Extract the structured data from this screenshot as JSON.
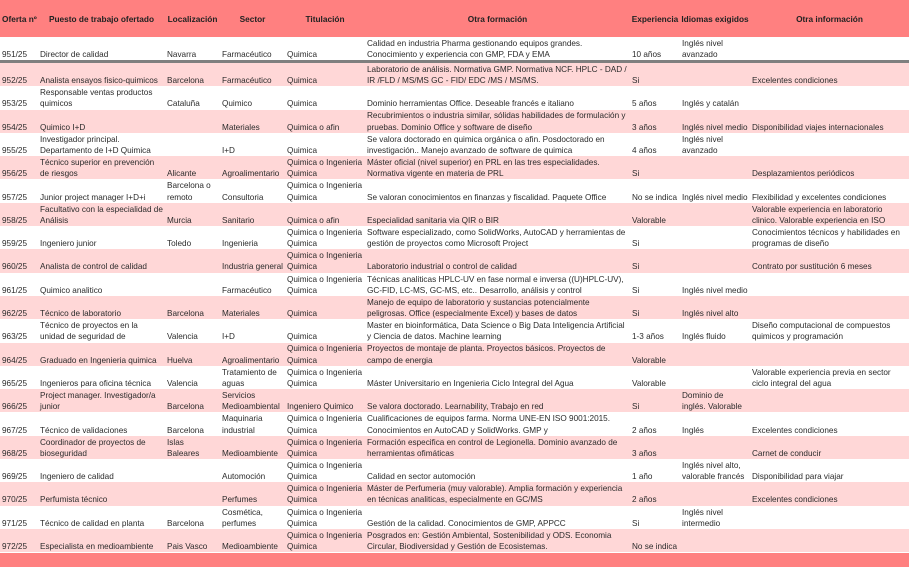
{
  "colors": {
    "header": "#ff8080",
    "stripe": "#ffd7d7",
    "separator": "#7f7f7f"
  },
  "headers": [
    "Oferta nº",
    "Puesto de trabajo ofertado",
    "Localización",
    "Sector",
    "Titulación",
    "Otra formación",
    "Experiencia",
    "Idiomas exigidos",
    "Otra información"
  ],
  "rows": [
    [
      "951/25",
      "Director de calidad",
      "Navarra",
      "Farmacéutico",
      "Quimica",
      "Calidad en industria Pharma gestionando equipos grandes. Conocimiento y experiencia con GMP, FDA y EMA",
      "10 años",
      "Inglés nivel avanzado",
      ""
    ],
    [
      "952/25",
      "Analista ensayos fisico-quimicos",
      "Barcelona",
      "Farmacéutico",
      "Quimica",
      "Laboratorio de análisis. Normativa GMP. Normativa NCF. HPLC - DAD / IR /FLD / MS/MS GC - FID/ EDC /MS / MS/MS.",
      "Si",
      "",
      "Excelentes condiciones"
    ],
    [
      "953/25",
      "Responsable ventas productos quimicos",
      "Cataluña",
      "Quimico",
      "Quimica",
      "Dominio herramientas Office. Deseable francés e italiano",
      "5 años",
      "Inglés y catalán",
      ""
    ],
    [
      "954/25",
      "Quimico I+D",
      "",
      "Materiales",
      "Quimica o afin",
      "Recubrimientos o industria similar, sólidas habilidades de formulación y pruebas. Dominio Office y software de diseño",
      "3 años",
      "Inglés nivel medio",
      "Disponibilidad viajes internacionales"
    ],
    [
      "955/25",
      "Investigador principal. Departamento de I+D Quimica",
      "",
      "I+D",
      "Quimica",
      "Se valora doctorado en quimica orgánica o afin. Posdoctorado en investigación.. Manejo avanzado de software de quimica",
      "4 años",
      "Inglés nivel avanzado",
      ""
    ],
    [
      "956/25",
      "Técnico superior en prevención de riesgos",
      "Alicante",
      "Agroalimentario",
      "Quimica o Ingenieria Quimica",
      "Máster oficial (nivel superior) en PRL en las tres especialidades. Normativa vigente en materia de PRL",
      "Si",
      "",
      "Desplazamientos periódicos"
    ],
    [
      "957/25",
      "Junior project manager I+D+i",
      "Barcelona o remoto",
      "Consultoria",
      "Quimica o Ingenieria Quimica",
      "Se valoran conocimientos en finanzas y fiscalidad. Paquete Office",
      "No se indica",
      "Inglés nivel medio",
      "Flexibilidad y excelentes condiciones"
    ],
    [
      "958/25",
      "Facultativo con la especialidad de Análisis",
      "Murcia",
      "Sanitario",
      "Quimica o afin",
      "Especialidad sanitaria via QIR o BIR",
      "Valorable",
      "",
      "Valorable experiencia en laboratorio clinico. Valorable experiencia en ISO"
    ],
    [
      "959/25",
      "Ingeniero junior",
      "Toledo",
      "Ingenieria",
      "Quimica o Ingenieria Quimica",
      "Software especializado, como SolidWorks, AutoCAD y herramientas de gestión de proyectos como Microsoft Project",
      "Si",
      "",
      "Conocimientos técnicos y habilidades en programas de diseño"
    ],
    [
      "960/25",
      "Analista de control de calidad",
      "",
      "Industria general",
      "Quimica o Ingenieria Quimica",
      "Laboratorio industrial o control de calidad",
      "Si",
      "",
      "Contrato por sustitución 6 meses"
    ],
    [
      "961/25",
      "Quimico analitico",
      "",
      "Farmacéutico",
      "Quimica o Ingenieria Quimica",
      "Técnicas analiticas HPLC-UV en fase normal e inversa ((U)HPLC-UV), GC-FID, LC-MS, GC-MS, etc.. Desarrollo, análisis y control",
      "Si",
      "Inglés nivel medio",
      ""
    ],
    [
      "962/25",
      "Técnico de laboratorio",
      "Barcelona",
      "Materiales",
      "Quimica",
      "Manejo de equipo de laboratorio y sustancias potencialmente peligrosas. Office (especialmente Excel) y bases de datos",
      "Si",
      "Inglés nivel alto",
      ""
    ],
    [
      "963/25",
      "Técnico de proyectos en la unidad de seguridad de",
      "Valencia",
      "I+D",
      "Quimica",
      "Master en bioinformática, Data Science o Big Data Inteligencia Artificial y Ciencia de datos. Machine learning",
      "1-3 años",
      "Inglés fluido",
      "Diseño computacional de compuestos quimicos y programación"
    ],
    [
      "964/25",
      "Graduado en Ingenieria quimica",
      "Huelva",
      "Agroalimentario",
      "Quimica o Ingenieria Quimica",
      "Proyectos de montaje de planta. Proyectos básicos. Proyectos de campo de energia",
      "Valorable",
      "",
      ""
    ],
    [
      "965/25",
      "Ingenieros para oficina técnica",
      "Valencia",
      "Tratamiento de aguas",
      "Quimica o Ingenieria Quimica",
      "Máster Universitario en Ingenieria Ciclo Integral del Agua",
      "Valorable",
      "",
      "Valorable experiencia previa en sector ciclo integral del agua"
    ],
    [
      "966/25",
      "Project manager. Investigador/a junior",
      "Barcelona",
      "Servicios Medioambiental",
      "Ingeniero Quimico",
      "Se valora doctorado. Learnability, Trabajo en red",
      "Si",
      "Dominio de inglés. Valorable",
      ""
    ],
    [
      "967/25",
      "Técnico de validaciones",
      "Barcelona",
      "Maquinaria industrial",
      "Quimica o Ingenieria Quimica",
      "Cualificaciones de equipos farma. Norma UNE-EN ISO 9001:2015. Conocimientos en AutoCAD y SolidWorks. GMP y",
      "2 años",
      "Inglés",
      "Excelentes condiciones"
    ],
    [
      "968/25",
      "Coordinador de proyectos de bioseguridad",
      "Islas Baleares",
      "Medioambiente",
      "Quimica o Ingenieria Quimica",
      "Formación especifica en control de Legionella. Dominio avanzado de herramientas ofimáticas",
      "3 años",
      "",
      "Carnet de conducir"
    ],
    [
      "969/25",
      "Ingeniero de calidad",
      "",
      "Automoción",
      "Quimica o Ingenieria Quimica",
      "Calidad en sector automoción",
      "1 año",
      "Inglés nivel alto, valorable francés",
      "Disponibilidad para viajar"
    ],
    [
      "970/25",
      "Perfumista técnico",
      "",
      "Perfumes",
      "Quimica o Ingenieria Quimica",
      "Máster de Perfumeria (muy valorable). Amplia formación y experiencia en técnicas analiticas, especialmente en GC/MS",
      "2 años",
      "",
      "Excelentes condiciones"
    ],
    [
      "971/25",
      "Técnico de calidad en planta",
      "Barcelona",
      "Cosmética, perfumes",
      "Quimica o Ingenieria Quimica",
      "Gestión de la calidad. Conocimientos de GMP, APPCC",
      "Si",
      "Inglés nivel intermedio",
      ""
    ],
    [
      "972/25",
      "Especialista en medioambiente",
      "Pais Vasco",
      "Medioambiente",
      "Quimica o Ingenieria Quimica",
      "Posgrados en: Gestión Ambiental, Sostenibilidad y ODS. Economia Circular, Biodiversidad y Gestión de Ecosistemas.",
      "No se indica",
      "",
      ""
    ]
  ]
}
